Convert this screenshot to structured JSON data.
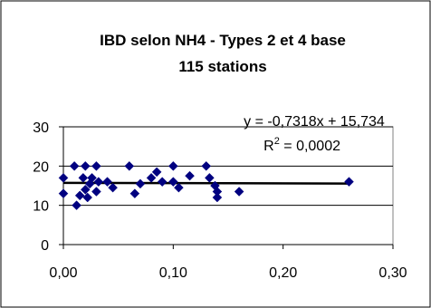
{
  "chart_data": {
    "type": "scatter",
    "title_line1": "IBD selon NH4 - Types 2 et 4 base",
    "title_line2": "115 stations",
    "xlabel": "",
    "ylabel": "",
    "xlim": [
      0,
      0.3
    ],
    "ylim": [
      0,
      30
    ],
    "x_ticks": [
      0,
      0.1,
      0.2,
      0.3
    ],
    "y_ticks": [
      0,
      10,
      20,
      30
    ],
    "x_tick_labels": [
      "0,00",
      "0,10",
      "0,20",
      "0,30"
    ],
    "y_tick_labels": [
      "0",
      "10",
      "20",
      "30"
    ],
    "grid": "horizontal",
    "legend": "none",
    "marker_color": "#000080",
    "trendline_color": "#000000",
    "equation_text": "y = -0,7318x + 15,734",
    "r2_text_prefix": "R",
    "r2_text_suffix": " = 0,0002",
    "trendline": {
      "slope": -0.7318,
      "intercept": 15.734
    },
    "points": [
      {
        "x": 0.0,
        "y": 17
      },
      {
        "x": 0.0,
        "y": 13
      },
      {
        "x": 0.01,
        "y": 20
      },
      {
        "x": 0.012,
        "y": 10
      },
      {
        "x": 0.015,
        "y": 12.5
      },
      {
        "x": 0.018,
        "y": 17
      },
      {
        "x": 0.02,
        "y": 20
      },
      {
        "x": 0.02,
        "y": 14
      },
      {
        "x": 0.022,
        "y": 12
      },
      {
        "x": 0.024,
        "y": 15.5
      },
      {
        "x": 0.026,
        "y": 17
      },
      {
        "x": 0.03,
        "y": 20
      },
      {
        "x": 0.03,
        "y": 13.5
      },
      {
        "x": 0.032,
        "y": 16
      },
      {
        "x": 0.04,
        "y": 16
      },
      {
        "x": 0.045,
        "y": 14.5
      },
      {
        "x": 0.06,
        "y": 20
      },
      {
        "x": 0.065,
        "y": 13
      },
      {
        "x": 0.07,
        "y": 15.5
      },
      {
        "x": 0.08,
        "y": 17
      },
      {
        "x": 0.085,
        "y": 18.5
      },
      {
        "x": 0.09,
        "y": 16
      },
      {
        "x": 0.1,
        "y": 20
      },
      {
        "x": 0.1,
        "y": 16
      },
      {
        "x": 0.105,
        "y": 14.5
      },
      {
        "x": 0.115,
        "y": 17.5
      },
      {
        "x": 0.13,
        "y": 20
      },
      {
        "x": 0.133,
        "y": 17
      },
      {
        "x": 0.138,
        "y": 15
      },
      {
        "x": 0.14,
        "y": 13.5
      },
      {
        "x": 0.14,
        "y": 12
      },
      {
        "x": 0.16,
        "y": 13.5
      },
      {
        "x": 0.26,
        "y": 16
      }
    ]
  }
}
